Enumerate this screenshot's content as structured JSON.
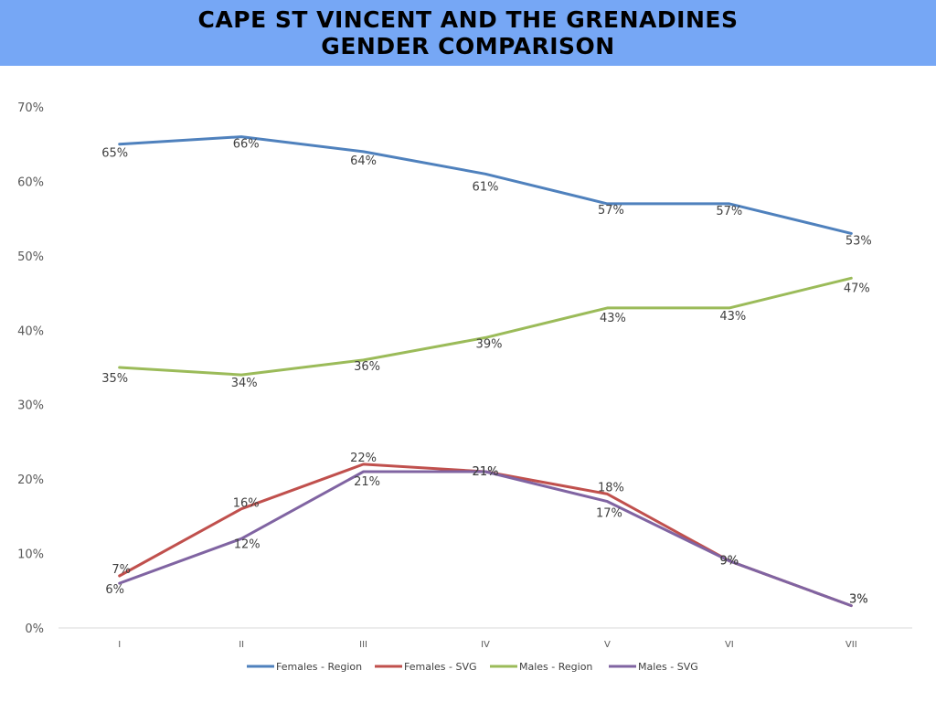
{
  "header": {
    "title_line1": "CAPE ST VINCENT AND THE GRENADINES",
    "title_line2": "GENDER COMPARISON",
    "background_color": "#76a7f5"
  },
  "chart_data": {
    "type": "line",
    "title": "CAPE ST VINCENT AND THE GRENADINES GENDER COMPARISON",
    "xlabel": "",
    "ylabel": "",
    "categories": [
      "I",
      "II",
      "III",
      "IV",
      "V",
      "VI",
      "VII"
    ],
    "y_ticks": [
      "0%",
      "10%",
      "20%",
      "30%",
      "40%",
      "50%",
      "60%",
      "70%"
    ],
    "ylim": [
      0,
      70
    ],
    "grid": false,
    "legend_position": "bottom",
    "series": [
      {
        "name": "Females - Region",
        "color": "#4f81bd",
        "values": [
          65,
          66,
          64,
          61,
          57,
          57,
          53
        ],
        "labels": [
          "65%",
          "66%",
          "64%",
          "61%",
          "57%",
          "57%",
          "53%"
        ]
      },
      {
        "name": "Females - SVG",
        "color": "#c0504d",
        "values": [
          7,
          16,
          22,
          21,
          18,
          9,
          3
        ],
        "labels": [
          "7%",
          "16%",
          "22%",
          "21%",
          "18%",
          "9%",
          "3%"
        ]
      },
      {
        "name": "Males - Region",
        "color": "#9bbb59",
        "values": [
          35,
          34,
          36,
          39,
          43,
          43,
          47
        ],
        "labels": [
          "35%",
          "34%",
          "36%",
          "39%",
          "43%",
          "43%",
          "47%"
        ]
      },
      {
        "name": "Males - SVG",
        "color": "#8064a2",
        "values": [
          6,
          12,
          21,
          21,
          17,
          9,
          3
        ],
        "labels": [
          "6%",
          "12%",
          "21%",
          "21%",
          "17%",
          "9%",
          "3%"
        ]
      }
    ]
  }
}
